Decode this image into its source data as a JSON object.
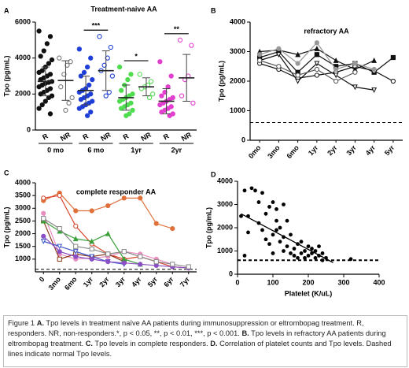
{
  "chart_data": [
    {
      "type": "dot-plot",
      "label": "A",
      "title": "Treatment-naive AA",
      "ylabel": "Tpo (pg/mL)",
      "ylim": [
        0,
        6000
      ],
      "yticks": [
        0,
        2000,
        4000,
        6000
      ],
      "significance": [
        null,
        "***",
        "*",
        "**"
      ],
      "groups": [
        {
          "name": "0 mo",
          "series": [
            {
              "name": "R",
              "color": "#111111",
              "filled": true,
              "mean": 2700,
              "sd": 800,
              "values": [
                5500,
                5200,
                4800,
                4400,
                4100,
                3900,
                3700,
                3500,
                3300,
                3200,
                3100,
                3000,
                2900,
                2800,
                2700,
                2650,
                2600,
                2500,
                2400,
                2300,
                2200,
                2100,
                2000,
                1900,
                1800,
                1600,
                1400,
                1200,
                900
              ]
            },
            {
              "name": "NR",
              "color": "#777777",
              "filled": false,
              "mean": 2750,
              "sd": 1100,
              "values": [
                4000,
                3800,
                3600,
                3100,
                2400,
                1800,
                1500,
                1100
              ]
            }
          ]
        },
        {
          "name": "6 mo",
          "series": [
            {
              "name": "R",
              "color": "#1f3fd6",
              "filled": true,
              "mean": 2200,
              "sd": 800,
              "values": [
                4500,
                4000,
                3500,
                3200,
                3000,
                2800,
                2500,
                2300,
                2200,
                2100,
                2000,
                1900,
                1800,
                1700,
                1600,
                1500,
                1400,
                1300,
                1200,
                1000,
                800
              ]
            },
            {
              "name": "NR",
              "color": "#1f3fd6",
              "filled": false,
              "mean": 3300,
              "sd": 1100,
              "values": [
                5200,
                4600,
                4000,
                3600,
                3300,
                3000,
                2100,
                1900
              ]
            }
          ]
        },
        {
          "name": "1yr",
          "series": [
            {
              "name": "R",
              "color": "#4fdc4f",
              "filled": true,
              "mean": 1800,
              "sd": 700,
              "values": [
                3500,
                3100,
                2800,
                2500,
                2200,
                2000,
                1900,
                1800,
                1700,
                1600,
                1500,
                1400,
                1300,
                1200,
                1100,
                900,
                800
              ]
            },
            {
              "name": "NR",
              "color": "#4fdc4f",
              "filled": false,
              "mean": 2400,
              "sd": 500,
              "values": [
                3100,
                2700,
                2500,
                2400,
                2300,
                2000,
                1800
              ]
            }
          ]
        },
        {
          "name": "2yr",
          "series": [
            {
              "name": "R",
              "color": "#e33fcf",
              "filled": true,
              "mean": 1600,
              "sd": 700,
              "values": [
                3800,
                3000,
                2400,
                2100,
                1900,
                1800,
                1700,
                1600,
                1500,
                1400,
                1300,
                1200,
                1100,
                1000,
                900,
                800
              ]
            },
            {
              "name": "NR",
              "color": "#e33fcf",
              "filled": false,
              "mean": 2900,
              "sd": 1300,
              "values": [
                5000,
                4700,
                3000,
                2800,
                1900,
                1500
              ]
            }
          ]
        }
      ]
    },
    {
      "type": "line",
      "label": "B",
      "title": "refractory AA",
      "ylabel": "Tpo (pg/mL)",
      "categories": [
        "0mo",
        "3mo",
        "6mo",
        "1yr",
        "2yr",
        "3yr",
        "4yr",
        "5yr"
      ],
      "ylim": [
        0,
        4000
      ],
      "yticks": [
        0,
        1000,
        2000,
        3000,
        4000
      ],
      "reference_line": 600,
      "series": [
        {
          "color": "#111111",
          "marker": "square",
          "values": [
            2800,
            3000,
            2300,
            2900,
            2500,
            2600,
            2300,
            2800
          ]
        },
        {
          "color": "#111111",
          "marker": "circle",
          "values": [
            2600,
            2400,
            2100,
            2200,
            2300,
            2500,
            2350,
            2000
          ]
        },
        {
          "color": "#111111",
          "marker": "triangle-up",
          "values": [
            3000,
            3050,
            2900,
            3100,
            2700,
            2400,
            2700,
            null
          ]
        },
        {
          "color": "#111111",
          "marker": "triangle-down",
          "values": [
            2700,
            2900,
            2000,
            2600,
            2200,
            1800,
            1700,
            null
          ]
        },
        {
          "color": "#999999",
          "marker": "circle",
          "values": [
            2900,
            3100,
            2600,
            3300,
            2400,
            2600,
            2400,
            null
          ]
        },
        {
          "color": "#555555",
          "marker": "circle",
          "values": [
            2700,
            2500,
            2200,
            2400,
            2000,
            2300,
            null,
            null
          ]
        }
      ]
    },
    {
      "type": "line",
      "label": "C",
      "title": "complete responder AA",
      "ylabel": "Tpo (pg/mL)",
      "categories": [
        "0",
        "3mo",
        "6mo",
        "1yr",
        "2yr",
        "3yr",
        "4yr",
        "5yr",
        "6yr",
        "7yr"
      ],
      "ylim": [
        500,
        4000
      ],
      "yticks": [
        1000,
        1500,
        2000,
        2500,
        3000,
        3500,
        4000
      ],
      "reference_line": 600,
      "series": [
        {
          "color": "#e0703a",
          "marker": "circle",
          "values": [
            3300,
            3600,
            2900,
            2900,
            3100,
            3400,
            3400,
            2400,
            2200,
            null
          ]
        },
        {
          "color": "#d9452b",
          "marker": "circle",
          "values": [
            3400,
            3500,
            2300,
            1600,
            1200,
            1000,
            1100,
            900,
            700,
            650
          ]
        },
        {
          "color": "#e88fc0",
          "marker": "circle",
          "values": [
            2800,
            1200,
            1000,
            1050,
            1100,
            1300,
            1200,
            1000,
            800,
            null
          ]
        },
        {
          "color": "#8b3a1a",
          "marker": "square",
          "values": [
            2500,
            1000,
            1200,
            1100,
            1200,
            900,
            null,
            null,
            null,
            null
          ]
        },
        {
          "color": "#3aa03a",
          "marker": "triangle-up",
          "values": [
            2500,
            2100,
            1800,
            1700,
            2000,
            1000,
            800,
            null,
            null,
            null
          ]
        },
        {
          "color": "#3b55c9",
          "marker": "triangle-down",
          "values": [
            1700,
            1500,
            1300,
            1100,
            900,
            800,
            null,
            null,
            null,
            null
          ]
        },
        {
          "color": "#8a4fc4",
          "marker": "circle",
          "values": [
            1900,
            1300,
            1100,
            1000,
            900,
            850,
            800,
            750,
            700,
            650
          ]
        },
        {
          "color": "#888888",
          "marker": "square",
          "values": [
            2600,
            2200,
            1500,
            1400,
            1200,
            1300,
            1100,
            900,
            800,
            700
          ]
        }
      ]
    },
    {
      "type": "scatter",
      "label": "D",
      "xlabel": "Platelet (K/uL)",
      "ylabel": "Tpo (pg/mL)",
      "xlim": [
        0,
        400
      ],
      "xticks": [
        0,
        100,
        200,
        300,
        400
      ],
      "ylim": [
        0,
        4000
      ],
      "yticks": [
        0,
        1000,
        2000,
        3000,
        4000
      ],
      "reference_line": 600,
      "trend_line": {
        "x": [
          10,
          270
        ],
        "y": [
          2600,
          500
        ]
      },
      "x": [
        10,
        20,
        30,
        40,
        50,
        60,
        70,
        80,
        90,
        100,
        110,
        30,
        20,
        60,
        70,
        80,
        90,
        100,
        110,
        120,
        120,
        130,
        130,
        140,
        140,
        150,
        150,
        160,
        160,
        170,
        170,
        180,
        180,
        190,
        190,
        200,
        200,
        210,
        210,
        220,
        220,
        230,
        230,
        240,
        240,
        250,
        100,
        110,
        130,
        320
      ],
      "y": [
        2500,
        3600,
        2500,
        3700,
        3600,
        3100,
        3500,
        2600,
        2900,
        3100,
        2300,
        1800,
        800,
        2200,
        1900,
        1500,
        1300,
        1700,
        1900,
        2000,
        1400,
        1600,
        1000,
        1200,
        2300,
        1700,
        900,
        1100,
        800,
        1300,
        700,
        900,
        1400,
        1000,
        700,
        1200,
        800,
        900,
        1100,
        700,
        1000,
        1200,
        800,
        900,
        600,
        700,
        900,
        2800,
        3000,
        650
      ]
    }
  ],
  "caption": [
    {
      "text": "Figure 1 ",
      "bold": false
    },
    {
      "text": "A.",
      "bold": true
    },
    {
      "text": " Tpo levels in treatment naïve AA patients during immunosuppression or eltrombopag treatment. R, responders. NR, non-responders.*, p < 0.05, **, p < 0.01, ***, p < 0.001. ",
      "bold": false
    },
    {
      "text": "B.",
      "bold": true
    },
    {
      "text": " Tpo levels in refractory AA patients during eltrombopag treatment. ",
      "bold": false
    },
    {
      "text": "C.",
      "bold": true
    },
    {
      "text": " Tpo levels in complete responders. ",
      "bold": false
    },
    {
      "text": "D.",
      "bold": true
    },
    {
      "text": " Correlation of platelet counts and Tpo levels. Dashed lines indicate normal Tpo levels.",
      "bold": false
    }
  ]
}
